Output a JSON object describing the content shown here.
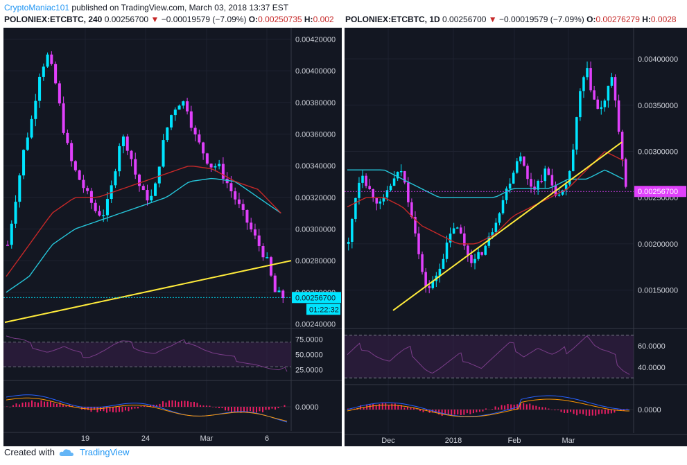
{
  "header": {
    "author": "CryptoManiac101",
    "text": "published on TradingView.com, March 03, 2018 13:37 EST"
  },
  "footer": {
    "created_with": "Created with",
    "brand": "TradingView"
  },
  "colors": {
    "bg": "#131722",
    "candle": "#e040fb",
    "candle_up": "#00e5ff",
    "ma_fast": "#c62828",
    "ma_slow": "#26c6da",
    "trend": "#ffeb3b",
    "rsi": "#7b3d8a",
    "macd": "#2962ff",
    "signal": "#ff9800",
    "hist": "#e91e63",
    "axis_text": "#d1d4dc",
    "grid": "#1e2230"
  },
  "chart_data": [
    {
      "type": "line",
      "title": "POLONIEX:ETCBTC, 240",
      "ticker": {
        "symbol": "POLONIEX:ETCBTC, 240",
        "last": "0.00256700",
        "change": "−0.00019579 (−7.09%)",
        "open_label": "O:",
        "open": "0.00250735",
        "high_label": "H:",
        "high": "0.002"
      },
      "x_ticks": [
        "19",
        "24",
        "Mar",
        "6"
      ],
      "y_ticks": [
        "0.00420000",
        "0.00400000",
        "0.00380000",
        "0.00360000",
        "0.00340000",
        "0.00320000",
        "0.00300000",
        "0.00280000",
        "0.00260000",
        "0.00240000"
      ],
      "ylim": [
        0.00238,
        0.00425
      ],
      "last_price": "0.00256700",
      "countdown": "01:22:32",
      "price_path": [
        0.0029,
        0.0032,
        0.0035,
        0.0037,
        0.004,
        0.0041,
        0.0039,
        0.0036,
        0.0034,
        0.0033,
        0.0032,
        0.0031,
        0.0031,
        0.0033,
        0.0036,
        0.0035,
        0.0033,
        0.0032,
        0.0032,
        0.0035,
        0.0037,
        0.0038,
        0.0038,
        0.0036,
        0.0035,
        0.0034,
        0.0034,
        0.0033,
        0.0032,
        0.0031,
        0.003,
        0.0029,
        0.0028,
        0.0026,
        0.00257
      ],
      "ma_fast": [
        0.0027,
        0.0029,
        0.0031,
        0.0032,
        0.0032,
        0.00325,
        0.0033,
        0.00335,
        0.0034,
        0.00338,
        0.0033,
        0.00325,
        0.0031
      ],
      "ma_slow": [
        0.0026,
        0.0027,
        0.0029,
        0.003,
        0.00305,
        0.0031,
        0.00315,
        0.0032,
        0.0033,
        0.00332,
        0.0033,
        0.0032,
        0.0031
      ],
      "trendline": [
        [
          0,
          0.00241
        ],
        [
          1,
          0.0028
        ]
      ],
      "rsi": {
        "ticks": [
          "75.0000",
          "50.0000",
          "25.0000"
        ],
        "ylim": [
          10,
          90
        ],
        "levels": [
          70,
          30
        ],
        "values": [
          80,
          75,
          72,
          65,
          60,
          55,
          58,
          62,
          55,
          50,
          48,
          52,
          58,
          65,
          70,
          68,
          60,
          55,
          52,
          58,
          62,
          68,
          72,
          66,
          58,
          52,
          48,
          45,
          42,
          38,
          35,
          30,
          25,
          22,
          26
        ]
      },
      "macd": {
        "ticks": [
          "0.0000"
        ]
      }
    },
    {
      "type": "line",
      "title": "POLONIEX:ETCBTC, 1D",
      "ticker": {
        "symbol": "POLONIEX:ETCBTC, 1D",
        "last": "0.00256700",
        "change": "−0.00019579 (−7.09%)",
        "open_label": "O:",
        "open": "0.00276279",
        "high_label": "H:",
        "high": "0.0028"
      },
      "x_ticks": [
        "Dec",
        "2018",
        "Feb",
        "Mar"
      ],
      "y_ticks": [
        "0.00400000",
        "0.00350000",
        "0.00300000",
        "0.00250000",
        "0.00200000",
        "0.00150000"
      ],
      "ylim": [
        0.0011,
        0.0043
      ],
      "last_price": "0.00256700",
      "price_path": [
        0.002,
        0.0025,
        0.0028,
        0.0026,
        0.0025,
        0.0024,
        0.0026,
        0.0027,
        0.0028,
        0.0025,
        0.0022,
        0.0017,
        0.0015,
        0.0016,
        0.0018,
        0.002,
        0.0022,
        0.0021,
        0.0019,
        0.0018,
        0.0019,
        0.002,
        0.0022,
        0.0024,
        0.0026,
        0.0028,
        0.003,
        0.0027,
        0.0026,
        0.0027,
        0.0028,
        0.0026,
        0.0025,
        0.0026,
        0.003,
        0.0036,
        0.0039,
        0.0036,
        0.0034,
        0.0036,
        0.0038,
        0.0032,
        0.00257
      ],
      "ma_fast": [
        0.0024,
        0.0025,
        0.0025,
        0.0024,
        0.0022,
        0.0021,
        0.002,
        0.002,
        0.0021,
        0.0023,
        0.0024,
        0.0025,
        0.0026,
        0.0028,
        0.003,
        0.0029
      ],
      "ma_slow": [
        0.0028,
        0.0028,
        0.0028,
        0.0027,
        0.0026,
        0.0025,
        0.0025,
        0.0025,
        0.0025,
        0.0026,
        0.0026,
        0.0026,
        0.0027,
        0.0027,
        0.0028,
        0.0027
      ],
      "trendline": [
        [
          0,
          0.00128
        ],
        [
          1,
          0.0031
        ]
      ],
      "rsi": {
        "ticks": [
          "60.0000",
          "40.0000"
        ],
        "ylim": [
          25,
          75
        ],
        "levels": [
          70,
          30
        ],
        "values": [
          50,
          55,
          60,
          58,
          52,
          48,
          45,
          50,
          54,
          56,
          48,
          40,
          35,
          38,
          42,
          46,
          50,
          48,
          44,
          40,
          45,
          50,
          55,
          60,
          58,
          52,
          55,
          58,
          54,
          50,
          52,
          56,
          60,
          65,
          70,
          60,
          55,
          52,
          48,
          40,
          35
        ]
      },
      "macd": {
        "ticks": [
          "0.0000"
        ]
      }
    }
  ]
}
